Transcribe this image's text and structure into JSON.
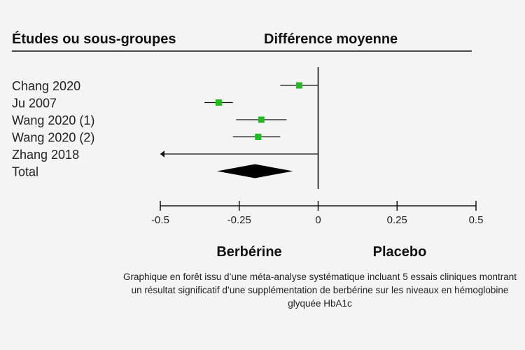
{
  "header": {
    "left": "Études ou sous-groupes",
    "right": "Différence moyenne"
  },
  "favors": {
    "left": "Berbérine",
    "right": "Placebo"
  },
  "caption": "Graphique en forêt issu d’une méta-analyse systématique incluant 5 essais cliniques montrant un résultat significatif d’une supplémentation de berbérine sur les niveaux en hémoglobine glyquée HbA1c",
  "colors": {
    "marker": "#22bb22",
    "line": "#111111",
    "diamond": "#000000"
  },
  "chart_data": {
    "type": "forest",
    "xlim": [
      -0.5,
      0.5
    ],
    "ticks": [
      -0.5,
      -0.25,
      0,
      0.25,
      0.5
    ],
    "tick_labels": [
      "-0.5",
      "-0.25",
      "0",
      "0.25",
      "0.5"
    ],
    "studies": [
      {
        "label": "Chang 2020",
        "estimate": -0.06,
        "lower": -0.12,
        "upper": 0.0
      },
      {
        "label": "Ju 2007",
        "estimate": -0.315,
        "lower": -0.36,
        "upper": -0.27
      },
      {
        "label": "Wang 2020 (1)",
        "estimate": -0.18,
        "lower": -0.26,
        "upper": -0.1
      },
      {
        "label": "Wang 2020 (2)",
        "estimate": -0.19,
        "lower": -0.27,
        "upper": -0.12
      },
      {
        "label": "Zhang 2018",
        "estimate": null,
        "lower": -0.5,
        "upper": 0.0,
        "arrow_left": true
      }
    ],
    "total": {
      "label": "Total",
      "estimate": -0.2,
      "lower": -0.32,
      "upper": -0.08
    }
  }
}
